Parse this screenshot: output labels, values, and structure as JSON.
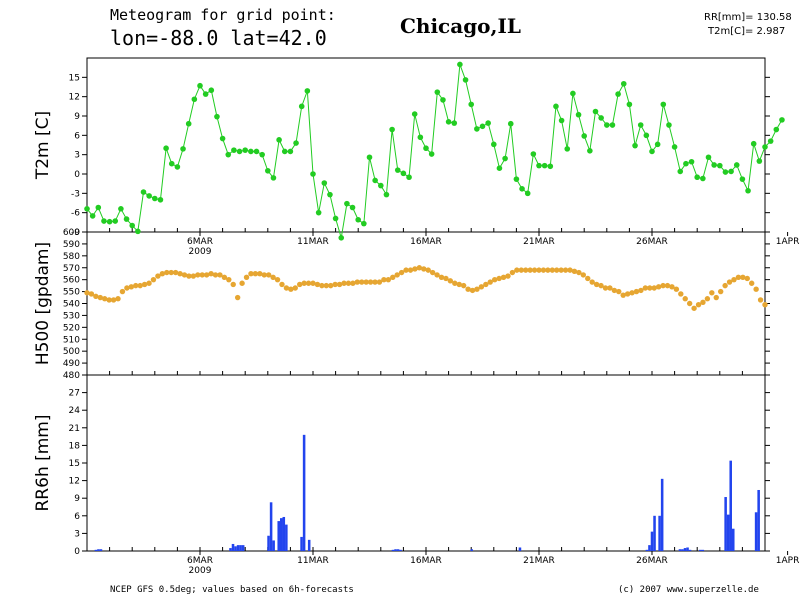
{
  "header": {
    "title_line1": "Meteogram for grid point:",
    "title_line2": "lon=-88.0 lat=42.0",
    "location": "Chicago,IL",
    "stat_rr": "RR[mm]= 130.58",
    "stat_t2m": "T2m[C]= 2.987"
  },
  "footer": {
    "source": "NCEP GFS 0.5deg; values based on 6h-forecasts",
    "credit": "(c) 2007 www.superzelle.de"
  },
  "colors": {
    "t2m": "#22cc22",
    "h500": "#e6a632",
    "rr6h": "#2244ee",
    "axis": "#000000"
  },
  "chart_data": [
    {
      "type": "line",
      "ylabel": "T2m [C]",
      "ylim": [
        -9,
        18
      ],
      "yticks": [
        "-9",
        "-6",
        "-3",
        "0",
        "3",
        "6",
        "9",
        "12",
        "15"
      ],
      "x_start": "1MAR 2009 00Z",
      "x_step_hours": 6,
      "xtick_labels": [
        "6MAR",
        "11MAR",
        "16MAR",
        "21MAR",
        "26MAR",
        "1APR"
      ],
      "year_label": "2009",
      "values": [
        -5.4,
        -6.5,
        -5.2,
        -7.3,
        -7.4,
        -7.3,
        -5.4,
        -7,
        -8,
        -8.9,
        -2.8,
        -3.4,
        -3.8,
        -4,
        4,
        1.6,
        1.1,
        3.9,
        7.8,
        11.6,
        13.7,
        12.4,
        13,
        8.9,
        5.5,
        3,
        3.7,
        3.5,
        3.7,
        3.5,
        3.5,
        3,
        0.5,
        -0.6,
        5.3,
        3.5,
        3.5,
        4.8,
        10.5,
        12.9,
        0,
        -6,
        -1.4,
        -3.2,
        -6.9,
        -9.9,
        -4.6,
        -5.2,
        -7.1,
        -7.7,
        2.6,
        -1,
        -1.8,
        -3.2,
        6.9,
        0.6,
        0.1,
        -0.5,
        9.3,
        5.7,
        4,
        3.1,
        12.7,
        11.5,
        8.1,
        7.9,
        17,
        14.6,
        10.8,
        7,
        7.4,
        7.9,
        4.6,
        0.9,
        2.4,
        7.8,
        -0.8,
        -2.3,
        -3,
        3.1,
        1.3,
        1.3,
        1.2,
        10.5,
        8.3,
        3.9,
        12.5,
        9.2,
        5.9,
        3.6,
        9.7,
        8.7,
        7.6,
        7.6,
        12.4,
        14,
        10.8,
        4.4,
        7.6,
        6,
        3.5,
        4.6,
        10.8,
        7.6,
        4.2,
        0.4,
        1.6,
        1.9,
        -0.5,
        -0.7,
        2.6,
        1.4,
        1.3,
        0.3,
        0.4,
        1.4,
        -0.8,
        -2.6,
        4.7,
        2,
        4.2,
        5.1,
        6.9,
        8.4
      ]
    },
    {
      "type": "scatter",
      "ylabel": "H500 [gpdam]",
      "ylim": [
        480,
        600
      ],
      "yticks": [
        "480",
        "490",
        "500",
        "510",
        "520",
        "530",
        "540",
        "550",
        "560",
        "570",
        "580",
        "590",
        "600"
      ],
      "values": [
        549,
        548,
        546,
        545,
        544,
        543,
        543,
        544,
        550,
        553,
        554,
        555,
        555,
        556,
        557,
        560,
        563,
        565,
        566,
        566,
        566,
        565,
        564,
        563,
        563,
        564,
        564,
        564,
        565,
        564,
        564,
        562,
        560,
        556,
        545,
        557,
        562,
        565,
        565,
        565,
        564,
        564,
        562,
        560,
        556,
        553,
        552,
        553,
        556,
        557,
        557,
        557,
        556,
        555,
        555,
        555,
        556,
        556,
        557,
        557,
        557,
        558,
        558,
        558,
        558,
        558,
        558,
        560,
        560,
        562,
        564,
        566,
        568,
        568,
        569,
        570,
        569,
        568,
        566,
        564,
        562,
        561,
        559,
        557,
        556,
        555,
        552,
        551,
        552,
        554,
        556,
        558,
        560,
        561,
        562,
        563,
        566,
        568,
        568,
        568,
        568,
        568,
        568,
        568,
        568,
        568,
        568,
        568,
        568,
        568,
        567,
        566,
        564,
        561,
        558,
        556,
        555,
        553,
        553,
        551,
        550,
        547,
        548,
        549,
        550,
        551,
        553,
        553,
        553,
        554,
        555,
        555,
        554,
        552,
        548,
        544,
        540,
        536,
        539,
        541,
        544,
        549,
        545,
        550,
        555,
        558,
        560,
        562,
        562,
        561,
        557,
        552,
        543,
        539
      ]
    },
    {
      "type": "bar",
      "ylabel": "RR6h [mm]",
      "ylim": [
        0,
        30
      ],
      "yticks": [
        "0",
        "3",
        "6",
        "9",
        "12",
        "15",
        "18",
        "21",
        "24",
        "27"
      ],
      "values": [
        0,
        0,
        0,
        0.2,
        0.3,
        0.3,
        0,
        0,
        0,
        0,
        0,
        0,
        0,
        0,
        0,
        0,
        0,
        0,
        0,
        0,
        0,
        0,
        0,
        0,
        0,
        0,
        0,
        0,
        0,
        0,
        0,
        0,
        0,
        0,
        0,
        0,
        0,
        0,
        0,
        0,
        0,
        0,
        0,
        0,
        0,
        0,
        0,
        0,
        0,
        0,
        0,
        0,
        0,
        0,
        0,
        0,
        0.5,
        1.2,
        0.8,
        1,
        1,
        1,
        0,
        0,
        0,
        0,
        0,
        0,
        0,
        0,
        0,
        2.6,
        8.3,
        1.8,
        0,
        5.1,
        5.6,
        5.8,
        4.5,
        0,
        0,
        0,
        0,
        0,
        2.4,
        19.8,
        0,
        1.9,
        0,
        0,
        0,
        0,
        0,
        0,
        0,
        0,
        0,
        0,
        0,
        0,
        0,
        0,
        0,
        0,
        0,
        0,
        0,
        0,
        0,
        0,
        0,
        0,
        0,
        0,
        0,
        0,
        0,
        0,
        0,
        0,
        0.2,
        0.3,
        0.3,
        0.2,
        0,
        0,
        0,
        0,
        0,
        0,
        0,
        0,
        0,
        0,
        0,
        0,
        0,
        0,
        0,
        0,
        0,
        0,
        0,
        0,
        0,
        0,
        0,
        0,
        0,
        0,
        0,
        0.3,
        0,
        0,
        0,
        0,
        0,
        0,
        0,
        0,
        0,
        0,
        0,
        0,
        0,
        0,
        0,
        0,
        0,
        0,
        0.6,
        0,
        0,
        0,
        0,
        0,
        0,
        0,
        0,
        0,
        0,
        0,
        0,
        0,
        0,
        0,
        0,
        0,
        0,
        0,
        0,
        0,
        0,
        0,
        0,
        0,
        0,
        0,
        0,
        0,
        0,
        0,
        0,
        0,
        0,
        0,
        0,
        0,
        0,
        0,
        0,
        0,
        0,
        0,
        0,
        0,
        0,
        0,
        0,
        0,
        0.2,
        1,
        3.3,
        6,
        0,
        6,
        12.3,
        0,
        0,
        0,
        0,
        0,
        0,
        0.3,
        0.3,
        0.5,
        0.6,
        0.2,
        0,
        0,
        0,
        0.2,
        0.2,
        0,
        0,
        0,
        0,
        0,
        0,
        0,
        0,
        9.2,
        6.2,
        15.4,
        3.8,
        0,
        0,
        0,
        0,
        0,
        0,
        0,
        0,
        6.6,
        10.4,
        0,
        0
      ]
    }
  ]
}
